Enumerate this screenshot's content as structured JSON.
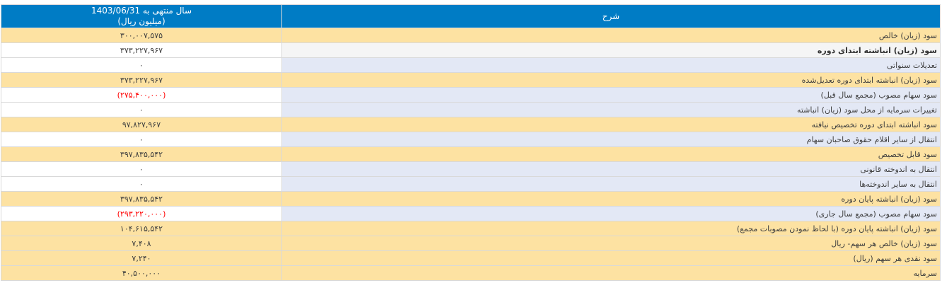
{
  "colors": {
    "header_bg": "#007CC5",
    "header_text": "#ffffff",
    "row_orange": "#FDE2A2",
    "row_lavender": "#E3E8F5",
    "row_highlight": "#F5F5F5",
    "row_white": "#ffffff",
    "border": "#D9D9D9",
    "text": "#404040",
    "negative": "#FF0000"
  },
  "table": {
    "header": {
      "description_label": "شرح",
      "period_label": "سال منتهی به 1403/06/31",
      "unit_label": "(میلیون ریال)"
    },
    "rows": [
      {
        "label": "سود (زیان) خالص",
        "value": "۳۰۰,۰۰۷,۵۷۵",
        "style": "orange",
        "negative": false
      },
      {
        "label": "سود (زیان) انباشته ابتدای دوره",
        "value": "۳۷۳,۲۲۷,۹۶۷",
        "style": "highlight",
        "negative": false
      },
      {
        "label": "تعدیلات سنواتی",
        "value": "۰",
        "style": "plain",
        "negative": false
      },
      {
        "label": "سود (زیان) انباشته ابتدای دوره تعدیل‌شده",
        "value": "۳۷۳,۲۲۷,۹۶۷",
        "style": "orange",
        "negative": false
      },
      {
        "label": "سود سهام مصوب (مجمع سال قبل)",
        "value": "(۲۷۵,۴۰۰,۰۰۰)",
        "style": "plain",
        "negative": true
      },
      {
        "label": "تغییرات سرمایه از محل سود (زیان) انباشته",
        "value": "۰",
        "style": "plain",
        "negative": false
      },
      {
        "label": "سود انباشته ابتدای دوره تخصیص نیافته",
        "value": "۹۷,۸۲۷,۹۶۷",
        "style": "orange",
        "negative": false
      },
      {
        "label": "انتقال از سایر اقلام حقوق صاحبان سهام",
        "value": "۰",
        "style": "plain",
        "negative": false
      },
      {
        "label": "سود قابل تخصیص",
        "value": "۳۹۷,۸۳۵,۵۴۲",
        "style": "orange",
        "negative": false
      },
      {
        "label": "انتقال به اندوخته قانونی",
        "value": "۰",
        "style": "plain",
        "negative": false
      },
      {
        "label": "انتقال به سایر اندوخته‌ها",
        "value": "۰",
        "style": "plain",
        "negative": false
      },
      {
        "label": "سود (زیان) انباشته پایان دوره",
        "value": "۳۹۷,۸۳۵,۵۴۲",
        "style": "orange",
        "negative": false
      },
      {
        "label": "سود سهام مصوب (مجمع سال جاری)",
        "value": "(۲۹۳,۲۲۰,۰۰۰)",
        "style": "plain",
        "negative": true
      },
      {
        "label": "سود (زیان) انباشته پایان دوره (با لحاظ نمودن مصوبات مجمع)",
        "value": "۱۰۴,۶۱۵,۵۴۲",
        "style": "orange",
        "negative": false
      },
      {
        "label": "سود (زیان) خالص هر سهم- ریال",
        "value": "۷,۴۰۸",
        "style": "orange",
        "negative": false
      },
      {
        "label": "سود نقدی هر سهم (ریال)",
        "value": "۷,۲۴۰",
        "style": "orange",
        "negative": false
      },
      {
        "label": "سرمایه",
        "value": "۴۰,۵۰۰,۰۰۰",
        "style": "orange",
        "negative": false
      }
    ]
  }
}
